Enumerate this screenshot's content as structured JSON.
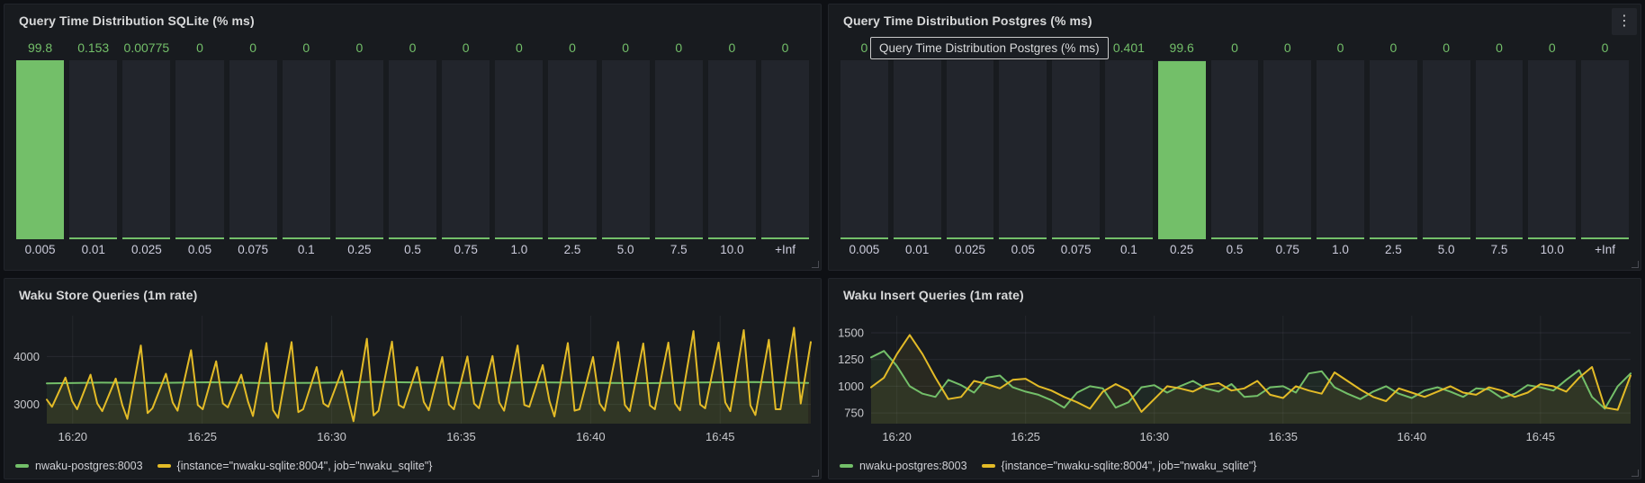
{
  "colors": {
    "green": "#73bf69",
    "yellow": "#e3bb27",
    "panel_bg": "#181b1f",
    "page_bg": "#0e1014",
    "bar_track": "#22252c",
    "axis_text": "#c7c8cc",
    "title_text": "#d8d9da"
  },
  "icons": {
    "kebab": "⋮"
  },
  "panels": {
    "sqlite_hist": {
      "title": "Query Time Distribution SQLite (% ms)"
    },
    "postgres_hist": {
      "title": "Query Time Distribution Postgres (% ms)",
      "tooltip": "Query Time Distribution Postgres (% ms)"
    },
    "store_ts": {
      "title": "Waku Store Queries (1m rate)"
    },
    "insert_ts": {
      "title": "Waku Insert Queries (1m rate)"
    }
  },
  "chart_data": [
    {
      "panel": "sqlite_hist",
      "type": "bar",
      "title": "Query Time Distribution SQLite (% ms)",
      "categories": [
        "0.005",
        "0.01",
        "0.025",
        "0.05",
        "0.075",
        "0.1",
        "0.25",
        "0.5",
        "0.75",
        "1.0",
        "2.5",
        "5.0",
        "7.5",
        "10.0",
        "+Inf"
      ],
      "values": [
        99.8,
        0.153,
        0.00775,
        0,
        0,
        0,
        0,
        0,
        0,
        0,
        0,
        0,
        0,
        0,
        0
      ],
      "value_labels": [
        "99.8",
        "0.153",
        "0.00775",
        "0",
        "0",
        "0",
        "0",
        "0",
        "0",
        "0",
        "0",
        "0",
        "0",
        "0",
        "0"
      ],
      "ylim": [
        0,
        100
      ]
    },
    {
      "panel": "postgres_hist",
      "type": "bar",
      "title": "Query Time Distribution Postgres (% ms)",
      "categories": [
        "0.005",
        "0.01",
        "0.025",
        "0.05",
        "0.075",
        "0.1",
        "0.25",
        "0.5",
        "0.75",
        "1.0",
        "2.5",
        "5.0",
        "7.5",
        "10.0",
        "+Inf"
      ],
      "values": [
        0,
        0,
        0,
        0,
        0,
        0.401,
        99.6,
        0,
        0,
        0,
        0,
        0,
        0,
        0,
        0
      ],
      "value_labels": [
        "0",
        "0",
        "0",
        "0",
        "0",
        "0.401",
        "99.6",
        "0",
        "0",
        "0",
        "0",
        "0",
        "0",
        "0",
        "0"
      ],
      "ylim": [
        0,
        100
      ]
    },
    {
      "panel": "store_ts",
      "type": "line",
      "title": "Waku Store Queries (1m rate)",
      "x_range": [
        0,
        29.5
      ],
      "y_range": [
        2600,
        4850
      ],
      "x_ticks": [
        {
          "t": 1,
          "label": "16:20"
        },
        {
          "t": 6,
          "label": "16:25"
        },
        {
          "t": 11,
          "label": "16:30"
        },
        {
          "t": 16,
          "label": "16:35"
        },
        {
          "t": 21,
          "label": "16:40"
        },
        {
          "t": 26,
          "label": "16:45"
        }
      ],
      "y_ticks": [
        {
          "v": 3000,
          "label": "3000"
        },
        {
          "v": 4000,
          "label": "4000"
        }
      ],
      "series": [
        {
          "name": "nwaku-postgres:8003",
          "color": "#73bf69",
          "x_start": 0,
          "x_step": 2.1,
          "values": [
            3440,
            3455,
            3450,
            3462,
            3446,
            3452,
            3470,
            3455,
            3448,
            3460,
            3452,
            3444,
            3456,
            3466,
            3450
          ]
        },
        {
          "name": "{instance=\"nwaku-sqlite:8004\", job=\"nwaku_sqlite\"}",
          "color": "#e3bb27",
          "points": [
            [
              0,
              3100
            ],
            [
              0.2,
              2950
            ],
            [
              0.72,
              3560
            ],
            [
              0.98,
              3070
            ],
            [
              1.17,
              2900
            ],
            [
              1.69,
              3620
            ],
            [
              1.95,
              3020
            ],
            [
              2.14,
              2860
            ],
            [
              2.66,
              3540
            ],
            [
              2.92,
              2980
            ],
            [
              3.11,
              2700
            ],
            [
              3.63,
              4230
            ],
            [
              3.89,
              2820
            ],
            [
              4.08,
              2920
            ],
            [
              4.6,
              3640
            ],
            [
              4.86,
              3040
            ],
            [
              5.05,
              2870
            ],
            [
              5.57,
              4130
            ],
            [
              5.83,
              2990
            ],
            [
              6.02,
              2900
            ],
            [
              6.54,
              3900
            ],
            [
              6.8,
              3020
            ],
            [
              6.99,
              2940
            ],
            [
              7.51,
              3620
            ],
            [
              7.77,
              3060
            ],
            [
              7.96,
              2760
            ],
            [
              8.48,
              4280
            ],
            [
              8.74,
              2880
            ],
            [
              8.93,
              2720
            ],
            [
              9.45,
              4300
            ],
            [
              9.71,
              2840
            ],
            [
              9.9,
              2900
            ],
            [
              10.42,
              3780
            ],
            [
              10.68,
              3020
            ],
            [
              10.87,
              2950
            ],
            [
              11.39,
              3700
            ],
            [
              11.65,
              3070
            ],
            [
              11.84,
              2650
            ],
            [
              12.36,
              4370
            ],
            [
              12.62,
              2770
            ],
            [
              12.81,
              2870
            ],
            [
              13.33,
              4310
            ],
            [
              13.59,
              2990
            ],
            [
              13.78,
              2930
            ],
            [
              14.3,
              3780
            ],
            [
              14.56,
              3050
            ],
            [
              14.75,
              2880
            ],
            [
              15.27,
              3990
            ],
            [
              15.53,
              3000
            ],
            [
              15.72,
              2900
            ],
            [
              16.24,
              4000
            ],
            [
              16.5,
              3020
            ],
            [
              16.69,
              2920
            ],
            [
              17.21,
              4010
            ],
            [
              17.47,
              3040
            ],
            [
              17.66,
              2870
            ],
            [
              18.18,
              4230
            ],
            [
              18.44,
              2990
            ],
            [
              18.63,
              2950
            ],
            [
              19.15,
              3820
            ],
            [
              19.41,
              3070
            ],
            [
              19.6,
              2750
            ],
            [
              20.12,
              4280
            ],
            [
              20.38,
              2870
            ],
            [
              20.57,
              2900
            ],
            [
              21.09,
              3990
            ],
            [
              21.35,
              3020
            ],
            [
              21.54,
              2870
            ],
            [
              22.06,
              4300
            ],
            [
              22.32,
              2990
            ],
            [
              22.51,
              2860
            ],
            [
              23.03,
              4270
            ],
            [
              23.29,
              2980
            ],
            [
              23.48,
              2900
            ],
            [
              24,
              4290
            ],
            [
              24.26,
              3020
            ],
            [
              24.45,
              2880
            ],
            [
              24.97,
              4530
            ],
            [
              25.23,
              3000
            ],
            [
              25.42,
              2920
            ],
            [
              25.94,
              4290
            ],
            [
              26.2,
              3040
            ],
            [
              26.39,
              2860
            ],
            [
              26.91,
              4550
            ],
            [
              27.17,
              2980
            ],
            [
              27.36,
              2780
            ],
            [
              27.88,
              4350
            ],
            [
              28.14,
              2900
            ],
            [
              28.33,
              2900
            ],
            [
              28.85,
              4600
            ],
            [
              29.11,
              3020
            ],
            [
              29.5,
              4300
            ]
          ]
        }
      ]
    },
    {
      "panel": "insert_ts",
      "type": "line",
      "title": "Waku Insert Queries (1m rate)",
      "x_range": [
        0,
        29.5
      ],
      "y_range": [
        650,
        1660
      ],
      "x_ticks": [
        {
          "t": 1,
          "label": "16:20"
        },
        {
          "t": 6,
          "label": "16:25"
        },
        {
          "t": 11,
          "label": "16:30"
        },
        {
          "t": 16,
          "label": "16:35"
        },
        {
          "t": 21,
          "label": "16:40"
        },
        {
          "t": 26,
          "label": "16:45"
        }
      ],
      "y_ticks": [
        {
          "v": 750,
          "label": "750"
        },
        {
          "v": 1000,
          "label": "1000"
        },
        {
          "v": 1250,
          "label": "1250"
        },
        {
          "v": 1500,
          "label": "1500"
        }
      ],
      "series": [
        {
          "name": "nwaku-postgres:8003",
          "color": "#73bf69",
          "x_start": 0,
          "x_step": 0.5,
          "values": [
            1270,
            1330,
            1190,
            1000,
            930,
            900,
            1060,
            1010,
            940,
            1080,
            1100,
            990,
            950,
            920,
            870,
            800,
            940,
            1000,
            980,
            800,
            850,
            990,
            1010,
            940,
            1000,
            1050,
            980,
            950,
            1020,
            900,
            910,
            990,
            1000,
            940,
            1120,
            1140,
            990,
            930,
            880,
            950,
            1000,
            930,
            890,
            960,
            990,
            950,
            900,
            980,
            970,
            890,
            930,
            1010,
            990,
            960,
            1060,
            1150,
            900,
            790,
            1000,
            1120
          ]
        },
        {
          "name": "{instance=\"nwaku-sqlite:8004\", job=\"nwaku_sqlite\"}",
          "color": "#e3bb27",
          "x_start": 0,
          "x_step": 0.5,
          "values": [
            990,
            1080,
            1300,
            1480,
            1300,
            1080,
            880,
            900,
            1050,
            1020,
            980,
            1060,
            1070,
            1000,
            960,
            900,
            850,
            790,
            950,
            1020,
            960,
            760,
            880,
            1000,
            980,
            950,
            1010,
            1030,
            960,
            980,
            1050,
            920,
            890,
            1000,
            960,
            930,
            1130,
            1050,
            970,
            900,
            860,
            980,
            940,
            900,
            950,
            1000,
            940,
            920,
            990,
            960,
            900,
            940,
            1020,
            1000,
            950,
            1080,
            1180,
            800,
            780,
            1100
          ]
        }
      ]
    }
  ]
}
